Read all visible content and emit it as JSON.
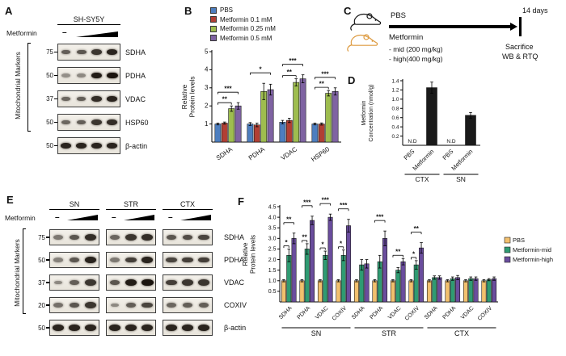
{
  "panelA": {
    "label": "A",
    "cell_line": "SH-SY5Y",
    "treatment": "Metformin",
    "control_symbol": "–",
    "side_label": "Mitochondrial Markers",
    "rows": [
      {
        "mw": "75",
        "protein": "SDHA",
        "bands": [
          0.55,
          0.6,
          0.8,
          0.9
        ]
      },
      {
        "mw": "50",
        "protein": "PDHA",
        "bands": [
          0.25,
          0.3,
          0.95,
          1.0
        ]
      },
      {
        "mw": "37",
        "protein": "VDAC",
        "bands": [
          0.5,
          0.55,
          0.85,
          0.9
        ]
      },
      {
        "mw": "50",
        "protein": "HSP60",
        "bands": [
          0.5,
          0.55,
          0.8,
          0.85
        ]
      },
      {
        "mw": "50",
        "protein": "β-actin",
        "bands": [
          0.9,
          0.9,
          0.9,
          0.9
        ]
      }
    ]
  },
  "panelB": {
    "label": "B",
    "chart_data": {
      "type": "bar",
      "ylabel": "Relative Protein levels",
      "ylim": [
        0,
        5
      ],
      "yticks": [
        1,
        2,
        3,
        4,
        5
      ],
      "categories": [
        "SDHA",
        "PDHA",
        "VDAC",
        "HSP60"
      ],
      "series": [
        {
          "name": "PBS",
          "color": "#4d7ebf",
          "values": [
            1.0,
            1.0,
            1.1,
            1.0
          ],
          "errors": [
            0.05,
            0.08,
            0.1,
            0.05
          ]
        },
        {
          "name": "Metformin 0.1 mM",
          "color": "#b13f34",
          "values": [
            1.05,
            0.95,
            1.2,
            1.0
          ],
          "errors": [
            0.06,
            0.1,
            0.12,
            0.06
          ]
        },
        {
          "name": "Metformin 0.25 mM",
          "color": "#9ebd4f",
          "values": [
            1.85,
            2.8,
            3.3,
            2.7
          ],
          "errors": [
            0.15,
            0.45,
            0.2,
            0.15
          ]
        },
        {
          "name": "Metformin 0.5 mM",
          "color": "#7f63a2",
          "values": [
            2.0,
            2.9,
            3.5,
            2.8
          ],
          "errors": [
            0.18,
            0.3,
            0.22,
            0.2
          ]
        }
      ],
      "annotations": [
        {
          "category": 0,
          "from": 0,
          "to": 2,
          "label": "**",
          "level": 0
        },
        {
          "category": 0,
          "from": 0,
          "to": 3,
          "label": "***",
          "level": 1
        },
        {
          "category": 1,
          "from": 0,
          "to": 3,
          "label": "*",
          "level": 1
        },
        {
          "category": 2,
          "from": 0,
          "to": 2,
          "label": "**",
          "level": 0
        },
        {
          "category": 2,
          "from": 0,
          "to": 3,
          "label": "***",
          "level": 1
        },
        {
          "category": 3,
          "from": 0,
          "to": 2,
          "label": "**",
          "level": 0
        },
        {
          "category": 3,
          "from": 0,
          "to": 3,
          "label": "***",
          "level": 1
        }
      ]
    }
  },
  "panelC": {
    "label": "C",
    "pbs": "PBS",
    "metformin": "Metformin",
    "dose_mid": "- mid (200 mg/kg)",
    "dose_high": "- high(400 mg/kg)",
    "duration": "14 days",
    "sacrifice": "Sacrifice",
    "readout": "WB & RTQ"
  },
  "panelD": {
    "label": "D",
    "chart_data": {
      "type": "bar",
      "ylabel": "Metformin Concentration (nmol/g)",
      "ylim": [
        0,
        1.4
      ],
      "yticks": [
        0.2,
        0.4,
        0.6,
        0.8,
        1.0,
        1.2,
        1.4
      ],
      "categories": [
        "PBS",
        "Metformin",
        "PBS",
        "Metformin"
      ],
      "values": [
        0,
        1.25,
        0,
        0.65
      ],
      "errors": [
        0,
        0.12,
        0,
        0.06
      ],
      "bar_color": "#1a1a1a",
      "nd_label": "N.D",
      "nd_indices": [
        0,
        2
      ],
      "groups": [
        {
          "name": "CTX",
          "span": [
            0,
            1
          ]
        },
        {
          "name": "SN",
          "span": [
            2,
            3
          ]
        }
      ]
    }
  },
  "panelE": {
    "label": "E",
    "treatment": "Metformin",
    "control_symbol": "–",
    "side_label": "Mitochondrial Markers",
    "regions": [
      "SN",
      "STR",
      "CTX"
    ],
    "rows": [
      {
        "mw": "75",
        "protein": "SDHA",
        "bands": {
          "SN": [
            0.4,
            0.6,
            0.85
          ],
          "STR": [
            0.5,
            0.8,
            0.85
          ],
          "CTX": [
            0.6,
            0.65,
            0.7
          ]
        }
      },
      {
        "mw": "50",
        "protein": "PDHA",
        "bands": {
          "SN": [
            0.35,
            0.6,
            0.9
          ],
          "STR": [
            0.4,
            0.75,
            0.9
          ],
          "CTX": [
            0.7,
            0.75,
            0.75
          ]
        }
      },
      {
        "mw": "37",
        "protein": "VDAC",
        "bands": {
          "SN": [
            0.3,
            0.55,
            0.8
          ],
          "STR": [
            0.6,
            0.95,
            1.0
          ],
          "CTX": [
            0.75,
            0.8,
            0.8
          ]
        }
      },
      {
        "mw": "20",
        "protein": "COXIV",
        "bands": {
          "SN": [
            0.45,
            0.6,
            0.8
          ],
          "STR": [
            0.3,
            0.55,
            0.7
          ],
          "CTX": [
            0.5,
            0.55,
            0.55
          ]
        }
      },
      {
        "mw": "50",
        "protein": "β-actin",
        "bands": {
          "SN": [
            0.9,
            0.9,
            0.9
          ],
          "STR": [
            0.9,
            0.9,
            0.9
          ],
          "CTX": [
            0.9,
            0.9,
            0.9
          ]
        }
      }
    ]
  },
  "panelF": {
    "label": "F",
    "chart_data": {
      "type": "bar",
      "ylabel": "Relative Protein levels",
      "ylim": [
        0,
        4.5
      ],
      "yticks": [
        0.5,
        1.0,
        1.5,
        2.0,
        2.5,
        3.0,
        3.5,
        4.0,
        4.5
      ],
      "categories": [
        "SDHA",
        "PDHA",
        "VDAC",
        "COXIV",
        "SDHA",
        "PDHA",
        "VDAC",
        "COXIV",
        "SDHA",
        "PDHA",
        "VDAC",
        "COXIV"
      ],
      "region_groups": [
        {
          "name": "SN",
          "span": [
            0,
            3
          ]
        },
        {
          "name": "STR",
          "span": [
            4,
            7
          ]
        },
        {
          "name": "CTX",
          "span": [
            8,
            11
          ]
        }
      ],
      "series": [
        {
          "name": "PBS",
          "color": "#f2c06e",
          "values": [
            1.0,
            1.0,
            1.0,
            1.0,
            1.0,
            1.0,
            1.0,
            1.0,
            1.0,
            1.0,
            1.0,
            1.0
          ],
          "errors": [
            0.05,
            0.05,
            0.05,
            0.05,
            0.05,
            0.05,
            0.05,
            0.05,
            0.05,
            0.05,
            0.05,
            0.05
          ]
        },
        {
          "name": "Metformin-mid",
          "color": "#2f9b72",
          "values": [
            2.2,
            2.5,
            2.2,
            2.2,
            1.75,
            1.9,
            1.5,
            1.75,
            1.15,
            1.1,
            1.1,
            1.05
          ],
          "errors": [
            0.3,
            0.25,
            0.2,
            0.25,
            0.25,
            0.3,
            0.12,
            0.2,
            0.08,
            0.08,
            0.08,
            0.05
          ]
        },
        {
          "name": "Metformin-high",
          "color": "#6a4d9d",
          "values": [
            3.0,
            3.85,
            4.0,
            3.6,
            1.8,
            3.0,
            1.9,
            2.55,
            1.15,
            1.15,
            1.1,
            1.1
          ],
          "errors": [
            0.25,
            0.2,
            0.15,
            0.3,
            0.2,
            0.35,
            0.15,
            0.25,
            0.08,
            0.1,
            0.08,
            0.08
          ]
        }
      ],
      "annotations": [
        {
          "category": 0,
          "from": 0,
          "to": 1,
          "label": "*",
          "level": 0
        },
        {
          "category": 0,
          "from": 0,
          "to": 2,
          "label": "**",
          "level": 1
        },
        {
          "category": 1,
          "from": 0,
          "to": 1,
          "label": "**",
          "level": 0
        },
        {
          "category": 1,
          "from": 0,
          "to": 2,
          "label": "***",
          "level": 1
        },
        {
          "category": 2,
          "from": 0,
          "to": 1,
          "label": "*",
          "level": 0
        },
        {
          "category": 2,
          "from": 0,
          "to": 2,
          "label": "***",
          "level": 1
        },
        {
          "category": 3,
          "from": 0,
          "to": 1,
          "label": "*",
          "level": 0
        },
        {
          "category": 3,
          "from": 0,
          "to": 2,
          "label": "***",
          "level": 1
        },
        {
          "category": 5,
          "from": 0,
          "to": 2,
          "label": "***",
          "level": 1
        },
        {
          "category": 6,
          "from": 0,
          "to": 2,
          "label": "**",
          "level": 0
        },
        {
          "category": 7,
          "from": 0,
          "to": 1,
          "label": "*",
          "level": 0
        },
        {
          "category": 7,
          "from": 0,
          "to": 2,
          "label": "**",
          "level": 1
        }
      ]
    }
  }
}
